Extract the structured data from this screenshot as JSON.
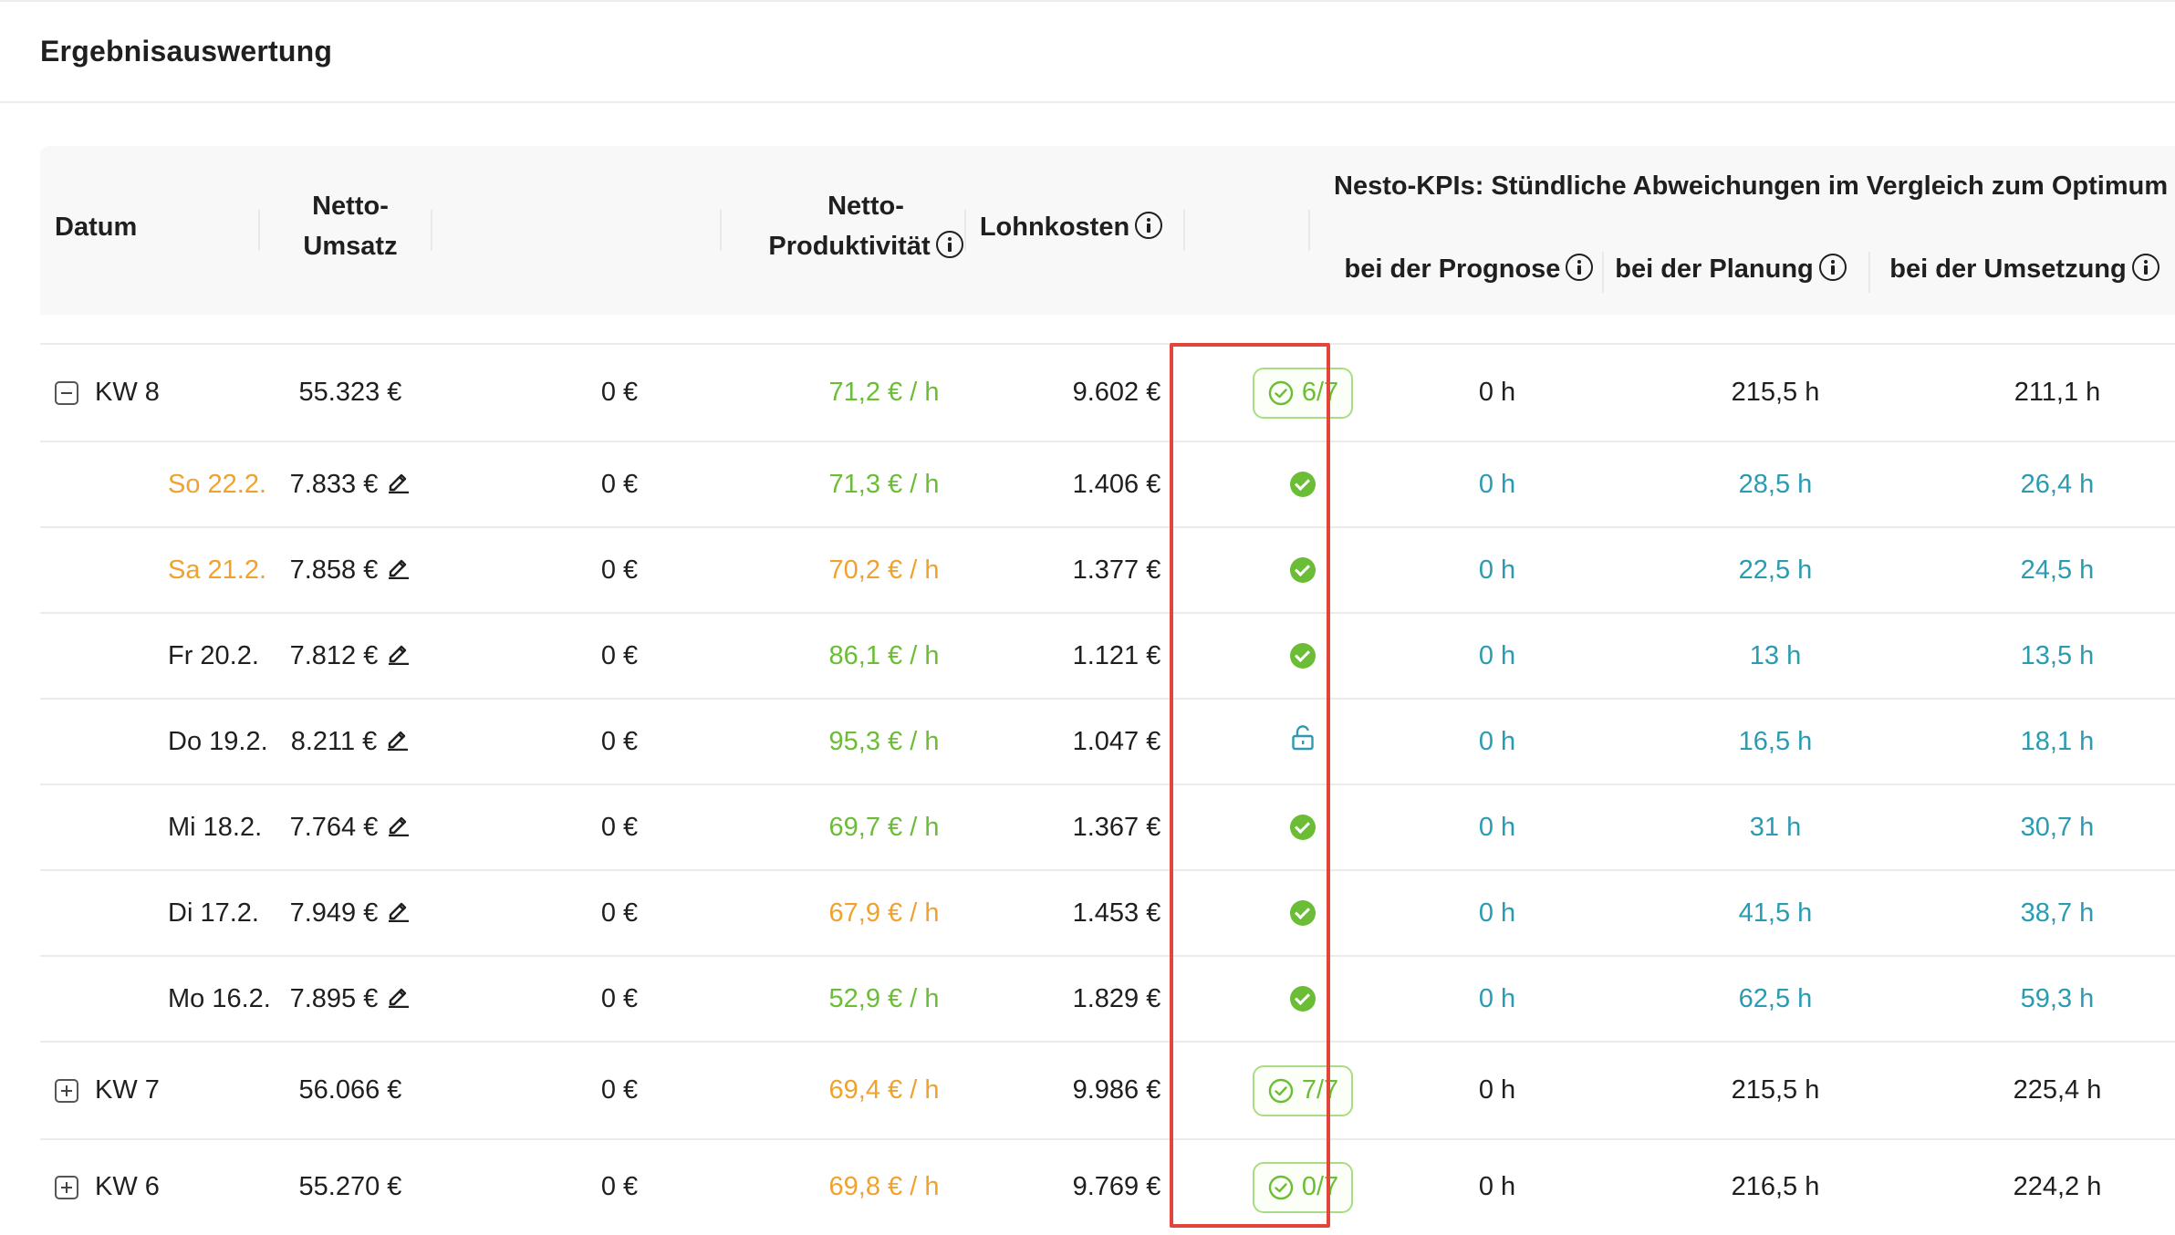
{
  "page": {
    "title": "Ergebnisauswertung"
  },
  "table": {
    "headers": {
      "datum": "Datum",
      "netto_umsatz_line1": "Netto-",
      "netto_umsatz_line2": "Umsatz",
      "netto_prod_line1": "Netto-",
      "netto_prod_line2": "Produktivität",
      "lohnkosten": "Lohnkosten",
      "kpi_group": "Nesto-KPIs: Stündliche Abweichungen im Vergleich zum Optimum",
      "prognose": "bei der Prognose",
      "planung": "bei der Planung",
      "umsetzung": "bei der Umsetzung"
    },
    "rows": [
      {
        "type": "week",
        "expanded": true,
        "label": "KW 8",
        "umsatz": "55.323 €",
        "extra": "0 €",
        "prod": "71,2 € / h",
        "prod_color": "green",
        "lohn": "9.602 €",
        "status": "6/7",
        "prognose": "0 h",
        "planung": "215,5 h",
        "umsetzung": "211,1 h"
      },
      {
        "type": "day",
        "label": "So 22.2.",
        "label_color": "orange",
        "umsatz": "7.833 €",
        "extra": "0 €",
        "prod": "71,3 € / h",
        "prod_color": "green",
        "lohn": "1.406 €",
        "status": "check",
        "prognose": "0 h",
        "planung": "28,5 h",
        "umsetzung": "26,4 h"
      },
      {
        "type": "day",
        "label": "Sa 21.2.",
        "label_color": "orange",
        "umsatz": "7.858 €",
        "extra": "0 €",
        "prod": "70,2 € / h",
        "prod_color": "orange",
        "lohn": "1.377 €",
        "status": "check",
        "prognose": "0 h",
        "planung": "22,5 h",
        "umsetzung": "24,5 h"
      },
      {
        "type": "day",
        "label": "Fr 20.2.",
        "label_color": "dark",
        "umsatz": "7.812 €",
        "extra": "0 €",
        "prod": "86,1 € / h",
        "prod_color": "green",
        "lohn": "1.121 €",
        "status": "check",
        "prognose": "0 h",
        "planung": "13 h",
        "umsetzung": "13,5 h"
      },
      {
        "type": "day",
        "label": "Do 19.2.",
        "label_color": "dark",
        "umsatz": "8.211 €",
        "extra": "0 €",
        "prod": "95,3 € / h",
        "prod_color": "green",
        "lohn": "1.047 €",
        "status": "unlocked",
        "prognose": "0 h",
        "planung": "16,5 h",
        "umsetzung": "18,1 h"
      },
      {
        "type": "day",
        "label": "Mi 18.2.",
        "label_color": "dark",
        "umsatz": "7.764 €",
        "extra": "0 €",
        "prod": "69,7 € / h",
        "prod_color": "green",
        "lohn": "1.367 €",
        "status": "check",
        "prognose": "0 h",
        "planung": "31 h",
        "umsetzung": "30,7 h"
      },
      {
        "type": "day",
        "label": "Di 17.2.",
        "label_color": "dark",
        "umsatz": "7.949 €",
        "extra": "0 €",
        "prod": "67,9 € / h",
        "prod_color": "orange",
        "lohn": "1.453 €",
        "status": "check",
        "prognose": "0 h",
        "planung": "41,5 h",
        "umsetzung": "38,7 h"
      },
      {
        "type": "day",
        "label": "Mo 16.2.",
        "label_color": "dark",
        "umsatz": "7.895 €",
        "extra": "0 €",
        "prod": "52,9 € / h",
        "prod_color": "green",
        "lohn": "1.829 €",
        "status": "check",
        "prognose": "0 h",
        "planung": "62,5 h",
        "umsetzung": "59,3 h"
      },
      {
        "type": "week",
        "expanded": false,
        "label": "KW 7",
        "umsatz": "56.066 €",
        "extra": "0 €",
        "prod": "69,4 € / h",
        "prod_color": "orange",
        "lohn": "9.986 €",
        "status": "7/7",
        "prognose": "0 h",
        "planung": "215,5 h",
        "umsetzung": "225,4 h"
      },
      {
        "type": "week",
        "expanded": false,
        "label": "KW 6",
        "umsatz": "55.270 €",
        "extra": "0 €",
        "prod": "69,8 € / h",
        "prod_color": "orange",
        "lohn": "9.769 €",
        "status": "0/7",
        "prognose": "0 h",
        "planung": "216,5 h",
        "umsetzung": "224,2 h"
      }
    ]
  },
  "colors": {
    "green": "#6cbd36",
    "orange": "#f0a22e",
    "teal": "#2a9bb0",
    "highlight": "#e2463a"
  }
}
